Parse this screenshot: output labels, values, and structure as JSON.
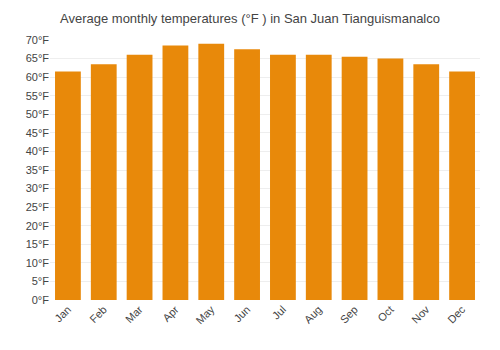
{
  "chart_data": {
    "type": "bar",
    "title": "Average monthly temperatures (°F ) in San Juan Tianguismanalco",
    "categories": [
      "Jan",
      "Feb",
      "Mar",
      "Apr",
      "May",
      "Jun",
      "Jul",
      "Aug",
      "Sep",
      "Oct",
      "Nov",
      "Dec"
    ],
    "values": [
      61.5,
      63.5,
      66.0,
      68.5,
      69.0,
      67.5,
      66.0,
      66.0,
      65.5,
      65.0,
      63.5,
      61.5
    ],
    "color": "#E8890A",
    "ylim": [
      0,
      70
    ],
    "yticks": [
      {
        "value": 0,
        "label": "0°F"
      },
      {
        "value": 5,
        "label": "5°F"
      },
      {
        "value": 10,
        "label": "10°F"
      },
      {
        "value": 15,
        "label": "15°F"
      },
      {
        "value": 20,
        "label": "20°F"
      },
      {
        "value": 25,
        "label": "25°F"
      },
      {
        "value": 30,
        "label": "30°F"
      },
      {
        "value": 35,
        "label": "35°F"
      },
      {
        "value": 40,
        "label": "40°F"
      },
      {
        "value": 45,
        "label": "45°F"
      },
      {
        "value": 50,
        "label": "50°F"
      },
      {
        "value": 55,
        "label": "55°F"
      },
      {
        "value": 60,
        "label": "60°F"
      },
      {
        "value": 65,
        "label": "65°F"
      },
      {
        "value": 70,
        "label": "70°F"
      }
    ],
    "grid": true
  }
}
